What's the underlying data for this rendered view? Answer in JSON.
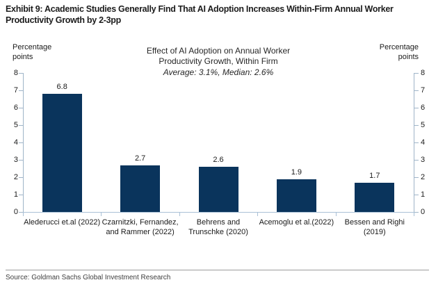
{
  "header": {
    "title_line1": "Exhibit 9: Academic Studies Generally Find That AI Adoption Increases Within-Firm Annual Worker",
    "title_line2": "Productivity Growth by 2-3pp"
  },
  "chart_data": {
    "type": "bar",
    "title": "Effect of AI Adoption on Annual Worker Productivity Growth, Within Firm",
    "title_line1": "Effect of AI Adoption on Annual Worker",
    "title_line2": "Productivity Growth, Within Firm",
    "subtitle": "Average: 3.1%, Median: 2.6%",
    "left_axis_label": "Percentage points",
    "right_axis_label": "Percentage points",
    "categories": [
      "Alederucci et.al (2022)",
      "Czarnitzki, Fernandez, and Rammer (2022)",
      "Behrens and Trunschke (2020)",
      "Acemoglu et al.(2022)",
      "Bessen and Righi (2019)"
    ],
    "values": [
      6.8,
      2.7,
      2.6,
      1.9,
      1.7
    ],
    "ylim": [
      0,
      8
    ],
    "ytick_step": 1,
    "grid": false,
    "legend": "none",
    "bar_color": "#0a345c",
    "axis_color": "#9fb4c8",
    "baseline_color": "#a9c0d6"
  },
  "footer": {
    "source": "Source: Goldman Sachs Global Investment Research"
  }
}
